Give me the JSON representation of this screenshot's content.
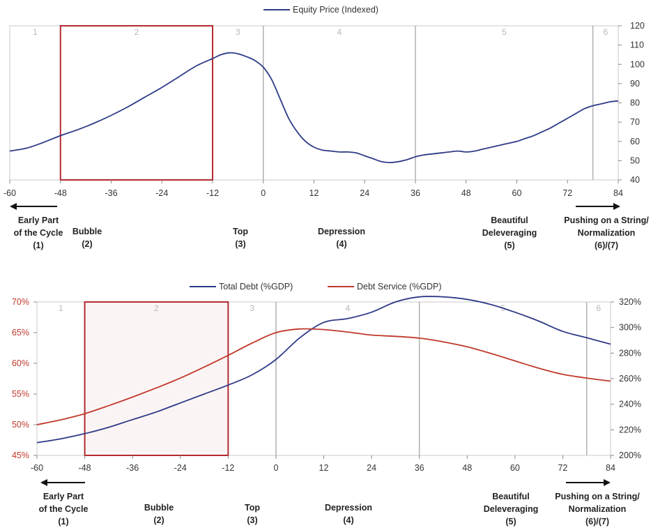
{
  "chart_data": [
    {
      "type": "line",
      "xlim": [
        -60,
        84
      ],
      "ylim": [
        40,
        120
      ],
      "y_axis_side": "right",
      "x_ticks": [
        "-60",
        "-48",
        "-36",
        "-24",
        "-12",
        "0",
        "12",
        "24",
        "36",
        "48",
        "60",
        "72",
        "84"
      ],
      "y_ticks": [
        "120",
        "110",
        "100",
        "90",
        "80",
        "70",
        "60",
        "50",
        "40"
      ],
      "legend_placement": "top-center",
      "grid": false,
      "phase_dividers_x": [
        0,
        36,
        78
      ],
      "bubble_box_x": [
        -48,
        -12
      ],
      "regions": [
        {
          "label": "1",
          "x": -54
        },
        {
          "label": "2",
          "x": -30
        },
        {
          "label": "3",
          "x": -6
        },
        {
          "label": "4",
          "x": 18
        },
        {
          "label": "5",
          "x": 57
        },
        {
          "label": "6",
          "x": 81
        }
      ],
      "series": [
        {
          "name": "Equity Price (Indexed)",
          "color": "#2e3a87",
          "x": [
            -60,
            -56,
            -52,
            -48,
            -44,
            -40,
            -36,
            -32,
            -28,
            -24,
            -20,
            -16,
            -12,
            -10,
            -8,
            -6,
            -4,
            -2,
            0,
            2,
            4,
            6,
            8,
            10,
            12,
            14,
            16,
            18,
            20,
            22,
            24,
            26,
            28,
            30,
            32,
            34,
            36,
            38,
            40,
            42,
            44,
            46,
            48,
            50,
            52,
            54,
            56,
            58,
            60,
            62,
            64,
            66,
            68,
            70,
            72,
            74,
            76,
            78,
            80,
            82,
            84
          ],
          "y": [
            55,
            56.5,
            59.5,
            63,
            66,
            69.5,
            73.5,
            78,
            83,
            88,
            93.5,
            99,
            103,
            105,
            106,
            105.5,
            104,
            102,
            98.5,
            92,
            82,
            72,
            65,
            60,
            57,
            55.5,
            55,
            54.5,
            54.5,
            54,
            52.5,
            51,
            49.5,
            49,
            49.5,
            50.5,
            52,
            53,
            53.5,
            54,
            54.5,
            55,
            54.5,
            55,
            56,
            57,
            58,
            59,
            60,
            61.5,
            63,
            65,
            67,
            69.5,
            72,
            74.5,
            77,
            78.5,
            79.5,
            80.5,
            81
          ]
        }
      ],
      "phase_labels": [
        {
          "lines": [
            "Early Part",
            "of the Cycle",
            "(1)"
          ],
          "arrow": "left"
        },
        {
          "lines": [
            "Bubble",
            "(2)"
          ]
        },
        {
          "lines": [
            "Top",
            "(3)"
          ]
        },
        {
          "lines": [
            "Depression",
            "(4)"
          ]
        },
        {
          "lines": [
            "Beautiful",
            "Deleveraging",
            "(5)"
          ]
        },
        {
          "lines": [
            "Pushing on a String/",
            "Normalization",
            "(6)/(7)"
          ],
          "arrow": "right"
        }
      ]
    },
    {
      "type": "line",
      "xlim": [
        -60,
        84
      ],
      "y_left": {
        "lim": [
          45,
          70
        ],
        "ticks": [
          "70%",
          "65%",
          "60%",
          "55%",
          "50%",
          "45%"
        ],
        "color": "#c0392b"
      },
      "y_right": {
        "lim": [
          200,
          320
        ],
        "ticks": [
          "320%",
          "300%",
          "280%",
          "260%",
          "240%",
          "220%",
          "200%"
        ]
      },
      "x_ticks": [
        "-60",
        "-48",
        "-36",
        "-24",
        "-12",
        "0",
        "12",
        "24",
        "36",
        "48",
        "60",
        "72",
        "84"
      ],
      "legend_placement": "top-center",
      "grid": false,
      "phase_dividers_x": [
        0,
        36,
        78
      ],
      "bubble_box_x": [
        -48,
        -12
      ],
      "regions": [
        {
          "label": "1",
          "x": -54
        },
        {
          "label": "2",
          "x": -30
        },
        {
          "label": "3",
          "x": -6
        },
        {
          "label": "4",
          "x": 18
        },
        {
          "label": "5",
          "x": 57
        },
        {
          "label": "6",
          "x": 81
        }
      ],
      "series": [
        {
          "name": "Total Debt (%GDP)",
          "color": "#2e3a87",
          "axis": "right",
          "x": [
            -60,
            -54,
            -48,
            -42,
            -36,
            -30,
            -24,
            -18,
            -12,
            -6,
            0,
            6,
            12,
            18,
            24,
            30,
            36,
            42,
            48,
            54,
            60,
            66,
            72,
            78,
            84
          ],
          "y": [
            210,
            213,
            217,
            222,
            228,
            234,
            241,
            248,
            255,
            263,
            275,
            292,
            304,
            307,
            312,
            320,
            324,
            324,
            322,
            318,
            312,
            305,
            297,
            292,
            287
          ]
        },
        {
          "name": "Debt Service (%GDP)",
          "color": "#c0392b",
          "axis": "left",
          "x": [
            -60,
            -54,
            -48,
            -42,
            -36,
            -30,
            -24,
            -18,
            -12,
            -6,
            0,
            6,
            12,
            18,
            24,
            30,
            36,
            42,
            48,
            54,
            60,
            66,
            72,
            78,
            84
          ],
          "y": [
            50,
            50.8,
            51.8,
            53.1,
            54.5,
            56,
            57.6,
            59.4,
            61.3,
            63.3,
            65,
            65.6,
            65.5,
            65.1,
            64.6,
            64.4,
            64.1,
            63.5,
            62.7,
            61.6,
            60.4,
            59.2,
            58.2,
            57.6,
            57.1
          ]
        }
      ],
      "phase_labels": [
        {
          "lines": [
            "Early Part",
            "of the Cycle",
            "(1)"
          ],
          "arrow": "left"
        },
        {
          "lines": [
            "Bubble",
            "(2)"
          ]
        },
        {
          "lines": [
            "Top",
            "(3)"
          ]
        },
        {
          "lines": [
            "Depression",
            "(4)"
          ]
        },
        {
          "lines": [
            "Beautiful",
            "Deleveraging",
            "(5)"
          ]
        },
        {
          "lines": [
            "Pushing on a String/",
            "Normalization",
            "(6)/(7)"
          ],
          "arrow": "right"
        }
      ]
    }
  ]
}
